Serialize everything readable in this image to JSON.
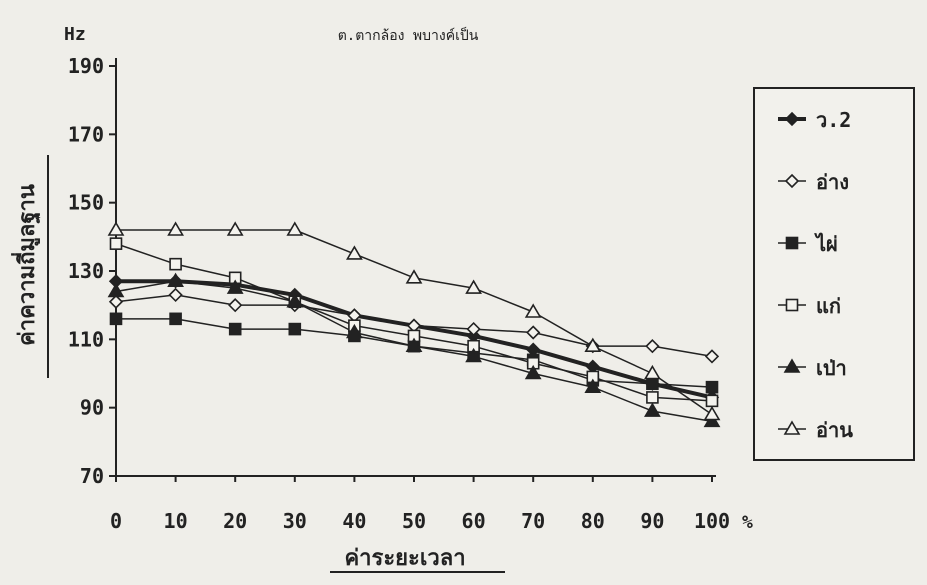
{
  "chart_data": {
    "type": "line",
    "x": [
      0,
      10,
      20,
      30,
      40,
      50,
      60,
      70,
      80,
      90,
      100
    ],
    "x_unit": "%",
    "y_unit": "Hz",
    "ylabel": "ค่าความถี่มูลฐาน",
    "xlabel": "ค่าระยะเวลา",
    "ylim": [
      70,
      190
    ],
    "xlim": [
      0,
      100
    ],
    "yticks": [
      70,
      90,
      110,
      130,
      150,
      170,
      190
    ],
    "xticks": [
      0,
      10,
      20,
      30,
      40,
      50,
      60,
      70,
      80,
      90,
      100
    ],
    "annotation": "ต.ตากล้อง พบางค์เป็น",
    "legend_position": "right",
    "grid": false,
    "series": [
      {
        "name": "ว.2",
        "marker": "diamond-filled",
        "line_width": 4,
        "values": [
          127,
          127,
          126,
          123,
          117,
          114,
          111,
          107,
          102,
          97,
          93
        ]
      },
      {
        "name": "อ่าง",
        "marker": "diamond-open",
        "line_width": 1.5,
        "values": [
          121,
          123,
          120,
          120,
          117,
          114,
          113,
          112,
          108,
          108,
          105
        ]
      },
      {
        "name": "ไผ่",
        "marker": "square-filled",
        "line_width": 1.5,
        "values": [
          116,
          116,
          113,
          113,
          111,
          108,
          106,
          104,
          98,
          97,
          96
        ]
      },
      {
        "name": "แก่",
        "marker": "square-open",
        "line_width": 1.5,
        "values": [
          138,
          132,
          128,
          121,
          114,
          111,
          108,
          103,
          99,
          93,
          92
        ]
      },
      {
        "name": "เป่า",
        "marker": "triangle-filled",
        "line_width": 1.5,
        "values": [
          124,
          127,
          125,
          121,
          112,
          108,
          105,
          100,
          96,
          89,
          86
        ]
      },
      {
        "name": "อ่าน",
        "marker": "triangle-open",
        "line_width": 1.5,
        "values": [
          142,
          142,
          142,
          142,
          135,
          128,
          125,
          118,
          108,
          100,
          88
        ]
      }
    ]
  }
}
